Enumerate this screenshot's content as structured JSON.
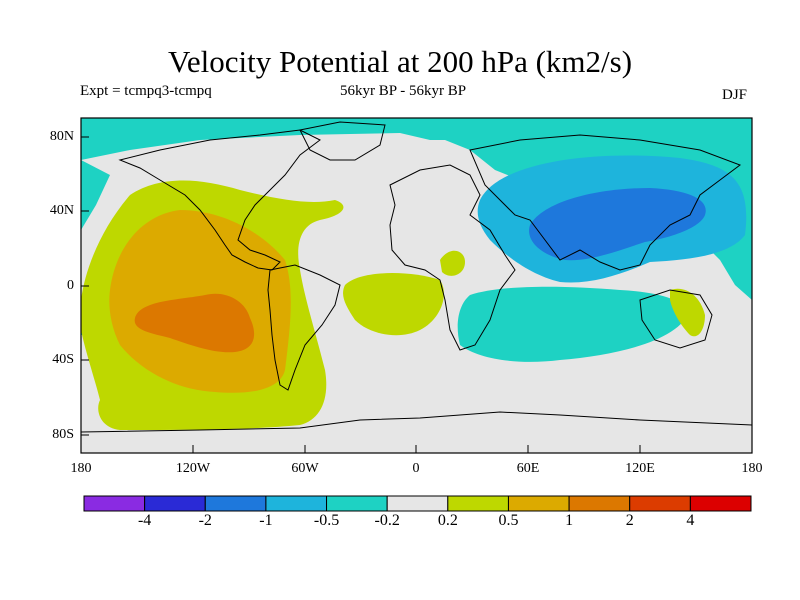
{
  "title": "Velocity Potential at 200 hPa (km2/s)",
  "expt": "Expt = tcmpq3-tcmpq",
  "period": "56kyr BP - 56kyr BP",
  "season": "DJF",
  "map": {
    "lat_labels": [
      "80N",
      "40N",
      "0",
      "40S",
      "80S"
    ],
    "lon_labels": [
      "180",
      "120W",
      "60W",
      "0",
      "60E",
      "120E",
      "180"
    ]
  },
  "colorbar": {
    "colors": [
      "#8a2be2",
      "#2a2ad6",
      "#1e78dc",
      "#1eb4dc",
      "#1ed2c3",
      "#e6e6e6",
      "#bed800",
      "#dcaa00",
      "#dc7800",
      "#dc3c00",
      "#dc0000"
    ],
    "labels": [
      "-4",
      "-2",
      "-1",
      "-0.5",
      "-0.2",
      "0.2",
      "0.5",
      "1",
      "2",
      "4"
    ]
  },
  "colors": {
    "neutral": "#e6e6e6",
    "pos_02": "#bed800",
    "pos_05": "#dcaa00",
    "pos_1": "#dc7800",
    "neg_02": "#1ed2c3",
    "neg_05": "#1eb4dc",
    "neg_1": "#1e78dc"
  }
}
